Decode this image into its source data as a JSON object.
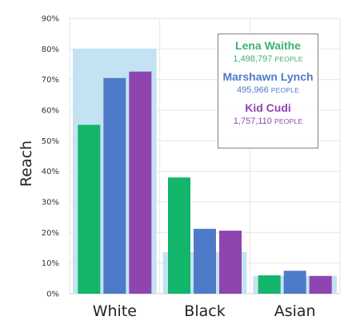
{
  "chart_data": {
    "type": "bar",
    "categories": [
      "White",
      "Black",
      "Asian"
    ],
    "series": [
      {
        "name": "Lena Waithe",
        "values": [
          55.2,
          38.0,
          6.0
        ],
        "color": "#12b56a"
      },
      {
        "name": "Marshawn Lynch",
        "values": [
          70.5,
          21.2,
          7.5
        ],
        "color": "#4e7bc7"
      },
      {
        "name": "Kid Cudi",
        "values": [
          72.6,
          20.6,
          5.8
        ],
        "color": "#8e45b0"
      }
    ],
    "background_values": [
      80.1,
      13.6,
      5.8
    ],
    "background_color": "#c3e3f3",
    "ylabel": "Reach",
    "ylim": [
      0,
      90
    ],
    "yticks": [
      "0%",
      "10%",
      "20%",
      "30%",
      "40%",
      "50%",
      "60%",
      "70%",
      "80%",
      "90%"
    ],
    "grid": true,
    "legend": {
      "placement": "top-right",
      "entries": [
        {
          "name": "Lena Waithe",
          "value": "1,498,797",
          "unit": "PEOPLE",
          "color": "#3cb371"
        },
        {
          "name": "Marshawn Lynch",
          "value": "495,966",
          "unit": "PEOPLE",
          "color": "#4e7bc7"
        },
        {
          "name": "Kid Cudi",
          "value": "1,757,110",
          "unit": "PEOPLE",
          "color": "#8e45b0"
        }
      ]
    }
  }
}
